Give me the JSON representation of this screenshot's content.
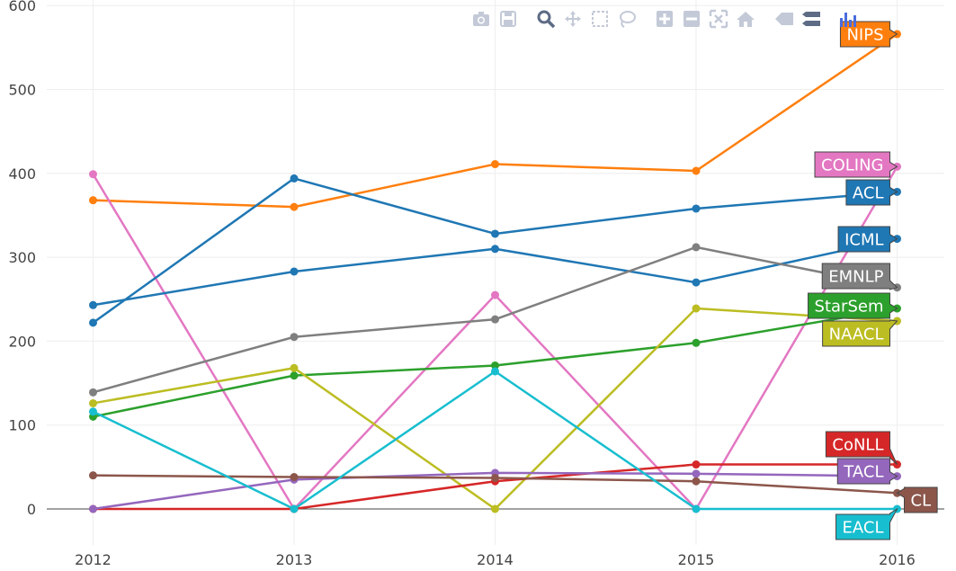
{
  "chart_data": {
    "type": "line",
    "x": [
      2012,
      2013,
      2014,
      2015,
      2016
    ],
    "ylim": [
      -40,
      600
    ],
    "xlim": [
      2011.8,
      2016.25
    ],
    "yticks": [
      0,
      100,
      200,
      300,
      400,
      500,
      600
    ],
    "grid": true,
    "xlabel": "",
    "ylabel": "",
    "title": "",
    "series": [
      {
        "name": "NIPS",
        "color": "#ff7f0e",
        "values": [
          368,
          360,
          411,
          403,
          566
        ]
      },
      {
        "name": "COLING",
        "color": "#e377c2",
        "values": [
          399,
          0,
          255,
          0,
          408
        ]
      },
      {
        "name": "ACL",
        "color": "#1f77b4",
        "values": [
          222,
          394,
          328,
          358,
          378
        ]
      },
      {
        "name": "ICML",
        "color": "#1f77b4",
        "values": [
          243,
          283,
          310,
          270,
          322
        ]
      },
      {
        "name": "EMNLP",
        "color": "#7f7f7f",
        "values": [
          139,
          205,
          226,
          312,
          264
        ]
      },
      {
        "name": "StarSem",
        "color": "#2ca02c",
        "values": [
          110,
          159,
          171,
          198,
          239
        ]
      },
      {
        "name": "NAACL",
        "color": "#bcbd22",
        "values": [
          126,
          168,
          0,
          239,
          224
        ]
      },
      {
        "name": "CoNLL",
        "color": "#d62728",
        "values": [
          0,
          0,
          33,
          53,
          53
        ]
      },
      {
        "name": "TACL",
        "color": "#9467bd",
        "values": [
          0,
          35,
          43,
          42,
          39
        ]
      },
      {
        "name": "CL",
        "color": "#8c564b",
        "values": [
          40,
          38,
          37,
          33,
          19
        ]
      },
      {
        "name": "EACL",
        "color": "#17becf",
        "values": [
          116,
          0,
          164,
          0,
          0
        ]
      }
    ]
  },
  "modebar": {
    "buttons": [
      {
        "icon": "camera-icon",
        "title": "Download plot as a png"
      },
      {
        "icon": "save-icon",
        "title": "Save"
      },
      {
        "icon": "zoom-icon",
        "title": "Zoom"
      },
      {
        "icon": "pan-icon",
        "title": "Pan"
      },
      {
        "icon": "box-select-icon",
        "title": "Box Select"
      },
      {
        "icon": "lasso-icon",
        "title": "Lasso Select"
      },
      {
        "icon": "zoom-in-icon",
        "title": "Zoom in"
      },
      {
        "icon": "zoom-out-icon",
        "title": "Zoom out"
      },
      {
        "icon": "autoscale-icon",
        "title": "Autoscale"
      },
      {
        "icon": "home-icon",
        "title": "Reset axes"
      },
      {
        "icon": "spike-lines-icon",
        "title": "Toggle Spike Lines"
      },
      {
        "icon": "compare-hover-icon",
        "title": "Compare data on hover"
      },
      {
        "icon": "plotly-logo-icon",
        "title": "Produced with Plotly"
      }
    ]
  }
}
